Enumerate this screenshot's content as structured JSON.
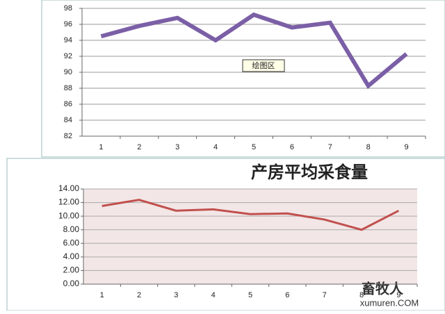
{
  "chart_data": [
    {
      "type": "line",
      "annotation": "绘图区",
      "categories": [
        "1",
        "2",
        "3",
        "4",
        "5",
        "6",
        "7",
        "8",
        "9"
      ],
      "series": [
        {
          "color": "#7b5fa6",
          "values": [
            94.5,
            95.8,
            96.8,
            94.0,
            97.2,
            95.6,
            96.2,
            88.3,
            92.3
          ]
        }
      ],
      "ylim": [
        82,
        98
      ],
      "yticks": [
        82,
        84,
        86,
        88,
        90,
        92,
        94,
        96,
        98
      ],
      "grid": true
    },
    {
      "type": "line",
      "title": "产房平均采食量",
      "categories": [
        "1",
        "2",
        "3",
        "4",
        "5",
        "6",
        "7",
        "8",
        "9"
      ],
      "series": [
        {
          "color": "#c0504d",
          "values": [
            11.5,
            12.4,
            10.8,
            11.0,
            10.3,
            10.4,
            9.5,
            8.0,
            10.8
          ]
        }
      ],
      "ylim": [
        0,
        14
      ],
      "yticks": [
        {
          "value": 0,
          "label": "0.00"
        },
        {
          "value": 2,
          "label": "2.00"
        },
        {
          "value": 4,
          "label": "4.00"
        },
        {
          "value": 6,
          "label": "6.00"
        },
        {
          "value": 8,
          "label": "8.00"
        },
        {
          "value": 10,
          "label": "10.00"
        },
        {
          "value": 12,
          "label": "12.00"
        },
        {
          "value": 14,
          "label": "14.00"
        }
      ],
      "grid": true
    }
  ],
  "watermark": {
    "name": "畜牧人",
    "site": "xumuren.COM"
  }
}
